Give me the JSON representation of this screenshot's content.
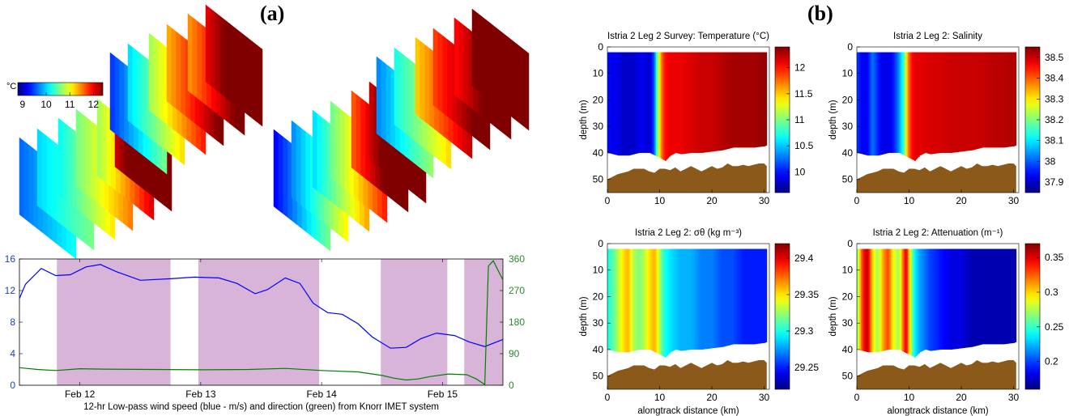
{
  "panel_labels": {
    "a": "(a)",
    "b": "(b)"
  },
  "colors": {
    "wind_speed": "#0000ff",
    "wind_direction": "#008000",
    "shading": "#d8b4d8",
    "sediment": "#8b5a1a"
  },
  "chart_data": [
    {
      "type": "3d-sections",
      "colorbar": {
        "unit": "°C",
        "ticks": [
          "9",
          "10",
          "11",
          "12"
        ],
        "range": [
          8.8,
          12.4
        ],
        "colormap": "jet"
      }
    },
    {
      "type": "line",
      "xlabel": "12-hr Low-pass wind speed (blue - m/s) and direction (green) from Knorr IMET system",
      "x_ticks": [
        "Feb 12",
        "Feb 13",
        "Feb 14",
        "Feb 15"
      ],
      "xlim": [
        11.5,
        15.5
      ],
      "y_left": {
        "ticks": [
          "0",
          "4",
          "8",
          "12",
          "16"
        ],
        "range": [
          0,
          16
        ]
      },
      "y_right": {
        "ticks": [
          "0",
          "90",
          "180",
          "270",
          "360"
        ],
        "range": [
          0,
          360
        ]
      },
      "shaded_intervals": [
        [
          11.81,
          12.75
        ],
        [
          12.98,
          13.98
        ],
        [
          14.49,
          15.04
        ],
        [
          15.18,
          15.91
        ]
      ],
      "series": [
        {
          "axis": "left",
          "x": [
            11.5,
            11.55,
            11.68,
            11.8,
            11.92,
            12.05,
            12.17,
            12.3,
            12.5,
            12.75,
            12.95,
            13.15,
            13.3,
            13.45,
            13.55,
            13.7,
            13.82,
            13.93,
            14.05,
            14.17,
            14.3,
            14.42,
            14.57,
            14.7,
            14.82,
            14.95,
            15.1,
            15.22,
            15.35,
            15.5
          ],
          "values": [
            11.0,
            12.8,
            14.8,
            13.9,
            14.0,
            15.0,
            15.3,
            14.4,
            13.3,
            13.5,
            13.7,
            13.6,
            12.9,
            11.6,
            12.1,
            13.6,
            12.9,
            10.4,
            9.2,
            9.0,
            7.8,
            6.1,
            4.7,
            4.8,
            5.9,
            6.6,
            6.3,
            5.5,
            4.9,
            5.8
          ]
        },
        {
          "axis": "right",
          "x": [
            11.5,
            11.65,
            11.8,
            12.0,
            12.2,
            12.6,
            13.0,
            13.4,
            13.7,
            14.0,
            14.3,
            14.5,
            14.6,
            14.7,
            14.8,
            14.9,
            15.05,
            15.2,
            15.28,
            15.35,
            15.38,
            15.42,
            15.5
          ],
          "values": [
            50,
            45,
            42,
            47,
            46,
            45,
            44,
            45,
            48,
            42,
            38,
            28,
            20,
            15,
            18,
            25,
            32,
            30,
            18,
            2,
            340,
            355,
            300
          ]
        }
      ]
    },
    {
      "type": "heatmap",
      "title": "Istria 2 Leg 2 Survey: Temperature (°C)",
      "xlabel": "",
      "ylabel": "depth (m)",
      "xlim": [
        0,
        31
      ],
      "ylim": [
        55,
        0
      ],
      "x_ticks": [
        "0",
        "10",
        "20",
        "30"
      ],
      "y_ticks": [
        "0",
        "10",
        "20",
        "30",
        "40",
        "50"
      ],
      "colorbar_ticks": [
        "10",
        "10.5",
        "11",
        "11.5",
        "12"
      ],
      "colorbar_range": [
        9.6,
        12.4
      ],
      "x": [
        0,
        1,
        2,
        3,
        4,
        5,
        6,
        7,
        8,
        9,
        9.5,
        10,
        10.5,
        11,
        12,
        14,
        16,
        18,
        20,
        22,
        24,
        26,
        28,
        30.5
      ],
      "values": [
        10.0,
        9.9,
        9.9,
        9.8,
        9.8,
        9.8,
        9.9,
        9.9,
        9.8,
        10.2,
        10.9,
        11.4,
        11.8,
        12.0,
        12.1,
        12.1,
        12.15,
        12.2,
        12.2,
        12.25,
        12.3,
        12.3,
        12.3,
        12.35
      ]
    },
    {
      "type": "heatmap",
      "title": "Istria 2 Leg 2: Salinity",
      "xlabel": "",
      "ylabel": "depth (m)",
      "xlim": [
        0,
        31
      ],
      "ylim": [
        55,
        0
      ],
      "x_ticks": [
        "0",
        "10",
        "20",
        "30"
      ],
      "y_ticks": [
        "0",
        "10",
        "20",
        "30",
        "40",
        "50"
      ],
      "colorbar_ticks": [
        "37.9",
        "38",
        "38.1",
        "38.2",
        "38.3",
        "38.4",
        "38.5"
      ],
      "colorbar_range": [
        37.85,
        38.55
      ],
      "x": [
        0,
        1,
        2,
        3,
        4,
        5,
        6,
        7,
        8,
        9,
        9.5,
        10,
        10.5,
        11,
        12,
        14,
        16,
        18,
        20,
        22,
        24,
        26,
        28,
        30.5
      ],
      "values": [
        37.98,
        37.93,
        37.93,
        38.02,
        37.96,
        37.92,
        37.92,
        37.95,
        38.03,
        38.15,
        38.3,
        38.4,
        38.45,
        38.48,
        38.48,
        38.49,
        38.49,
        38.5,
        38.5,
        38.5,
        38.5,
        38.51,
        38.51,
        38.52
      ]
    },
    {
      "type": "heatmap",
      "title": "Istria 2 Leg 2: σθ (kg m⁻³)",
      "xlabel": "alongtrack distance (km)",
      "ylabel": "depth (m)",
      "xlim": [
        0,
        31
      ],
      "ylim": [
        55,
        0
      ],
      "x_ticks": [
        "0",
        "10",
        "20",
        "30"
      ],
      "y_ticks": [
        "0",
        "10",
        "20",
        "30",
        "40",
        "50"
      ],
      "colorbar_ticks": [
        "29.25",
        "29.3",
        "29.35",
        "29.4"
      ],
      "colorbar_range": [
        29.22,
        29.42
      ],
      "x": [
        0,
        1,
        2,
        3,
        4,
        5,
        6,
        7,
        8,
        9,
        9.5,
        10,
        10.5,
        11,
        12,
        14,
        16,
        18,
        20,
        22,
        24,
        26,
        28,
        30.5
      ],
      "values": [
        29.3,
        29.31,
        29.33,
        29.35,
        29.36,
        29.33,
        29.32,
        29.33,
        29.35,
        29.36,
        29.35,
        29.33,
        29.31,
        29.3,
        29.29,
        29.28,
        29.28,
        29.27,
        29.27,
        29.26,
        29.26,
        29.25,
        29.25,
        29.25
      ]
    },
    {
      "type": "heatmap",
      "title": "Istria 2 Leg 2: Attenuation (m⁻¹)",
      "xlabel": "alongtrack distance (km)",
      "ylabel": "depth (m)",
      "xlim": [
        0,
        31
      ],
      "ylim": [
        55,
        0
      ],
      "x_ticks": [
        "0",
        "10",
        "20",
        "30"
      ],
      "y_ticks": [
        "0",
        "10",
        "20",
        "30",
        "40",
        "50"
      ],
      "colorbar_ticks": [
        "0.2",
        "0.25",
        "0.3",
        "0.35"
      ],
      "colorbar_range": [
        0.16,
        0.37
      ],
      "x": [
        0,
        1,
        2,
        3,
        4,
        5,
        6,
        7,
        8,
        9,
        9.5,
        10,
        10.5,
        11,
        12,
        14,
        16,
        18,
        20,
        22,
        24,
        26,
        28,
        30.5
      ],
      "values": [
        0.26,
        0.33,
        0.36,
        0.3,
        0.27,
        0.31,
        0.33,
        0.29,
        0.27,
        0.33,
        0.35,
        0.3,
        0.27,
        0.24,
        0.22,
        0.2,
        0.19,
        0.18,
        0.18,
        0.17,
        0.17,
        0.17,
        0.17,
        0.17
      ]
    }
  ]
}
